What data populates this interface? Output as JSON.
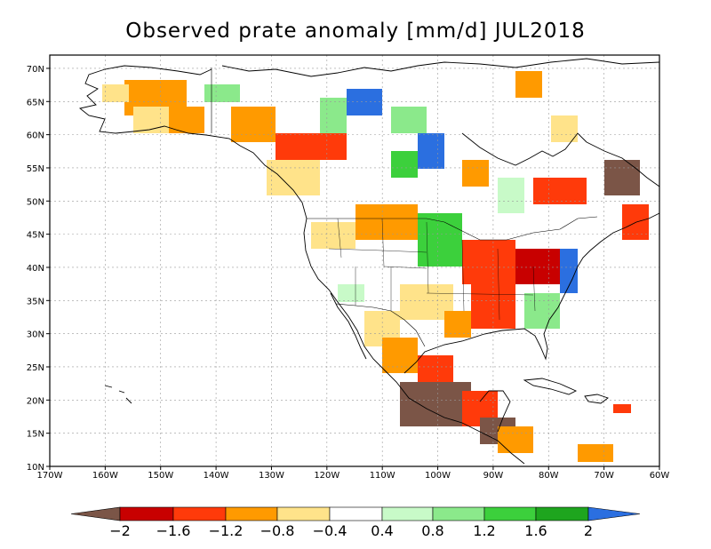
{
  "title": "Observed prate anomaly [mm/d] JUL2018",
  "map": {
    "lon_range": [
      -170,
      -60
    ],
    "lat_range": [
      10,
      72
    ],
    "grid": true,
    "lon_ticks": [
      "170W",
      "160W",
      "150W",
      "140W",
      "130W",
      "120W",
      "110W",
      "100W",
      "90W",
      "80W",
      "70W",
      "60W"
    ],
    "lat_ticks": [
      "10N",
      "15N",
      "20N",
      "25N",
      "30N",
      "35N",
      "40N",
      "45N",
      "50N",
      "55N",
      "60N",
      "65N",
      "70N"
    ]
  },
  "colorbar": {
    "labels": [
      "−2",
      "−1.6",
      "−1.2",
      "−0.8",
      "−0.4",
      "0.4",
      "0.8",
      "1.2",
      "1.6",
      "2"
    ],
    "colors": [
      "#7b5547",
      "#c80000",
      "#ff3a0a",
      "#ff9a00",
      "#ffe38a",
      "#ffffff",
      "#c8fac8",
      "#8be98b",
      "#3cd03c",
      "#1ea51e",
      "#2b6fe0"
    ]
  },
  "anomaly_colors": {
    "brown": "#7b5547",
    "darkred": "#c80000",
    "red": "#ff3a0a",
    "orange": "#ff9a00",
    "lightorange": "#ffe38a",
    "palegreen": "#c8fac8",
    "lightgreen": "#8be98b",
    "green": "#3cd03c",
    "darkgreen": "#1ea51e",
    "blue": "#2b6fe0"
  }
}
